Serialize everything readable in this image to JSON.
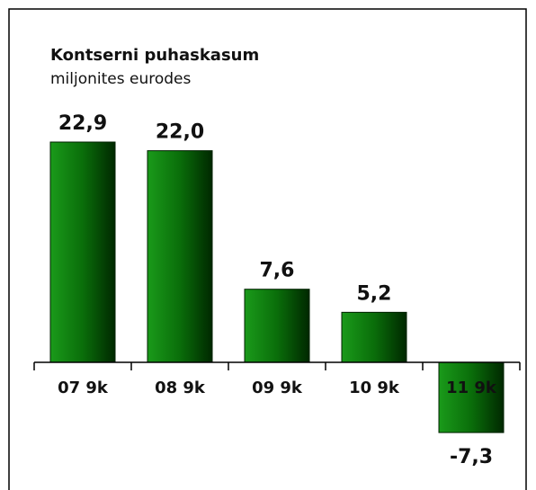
{
  "chart_data": {
    "type": "bar",
    "title": "Kontserni puhaskasum",
    "subtitle": "miljonites eurodes",
    "categories": [
      "07 9k",
      "08 9k",
      "09 9k",
      "10 9k",
      "11 9k"
    ],
    "values": [
      22.9,
      22.0,
      7.6,
      5.2,
      -7.3
    ],
    "value_labels": [
      "22,9",
      "22,0",
      "7,6",
      "5,2",
      "-7,3"
    ],
    "color": "#0a6e0a"
  }
}
